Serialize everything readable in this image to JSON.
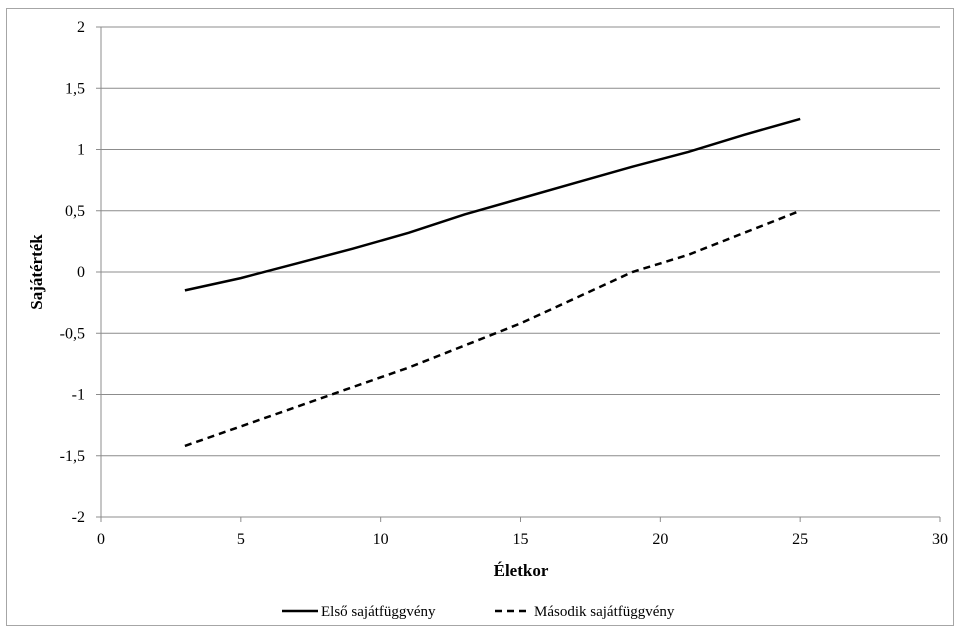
{
  "chart_data": {
    "type": "line",
    "title": "",
    "xlabel": "Életkor",
    "ylabel": "Sajátérték",
    "xlim": [
      0,
      30
    ],
    "ylim": [
      -2,
      2
    ],
    "x_ticks": [
      0,
      5,
      10,
      15,
      20,
      25,
      30
    ],
    "x_tick_labels": [
      "0",
      "5",
      "10",
      "15",
      "20",
      "25",
      "30"
    ],
    "y_ticks": [
      2,
      1.5,
      1,
      0.5,
      0,
      -0.5,
      -1,
      -1.5,
      -2
    ],
    "y_tick_labels": [
      "2",
      "1,5",
      "1",
      "0,5",
      "0",
      "-0,5",
      "-1",
      "-1,5",
      "-2"
    ],
    "grid": "horizontal",
    "legend_position": "bottom",
    "series": [
      {
        "name": "Első sajátfüggvény",
        "style": "solid",
        "color": "#000000",
        "x": [
          3,
          5,
          7,
          9,
          11,
          13,
          15,
          17,
          19,
          21,
          23,
          25
        ],
        "y": [
          -0.15,
          -0.05,
          0.07,
          0.19,
          0.32,
          0.47,
          0.6,
          0.73,
          0.86,
          0.98,
          1.12,
          1.25
        ]
      },
      {
        "name": "Második sajátfüggvény",
        "style": "dashed",
        "color": "#000000",
        "x": [
          3,
          5,
          7,
          9,
          11,
          13,
          15,
          17,
          19,
          21,
          23,
          25
        ],
        "y": [
          -1.42,
          -1.26,
          -1.1,
          -0.94,
          -0.78,
          -0.6,
          -0.42,
          -0.21,
          0.0,
          0.14,
          0.32,
          0.5
        ]
      }
    ]
  }
}
